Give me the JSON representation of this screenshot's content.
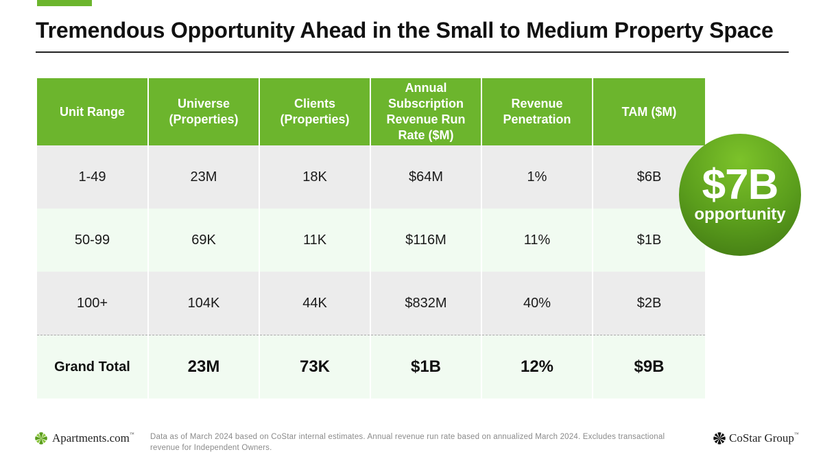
{
  "title": "Tremendous Opportunity Ahead in the Small to Medium Property Space",
  "table": {
    "headers": [
      "Unit Range",
      "Universe (Properties)",
      "Clients (Properties)",
      "Annual Subscription Revenue Run Rate ($M)",
      "Revenue Penetration",
      "TAM ($M)"
    ],
    "rows": [
      [
        "1-49",
        "23M",
        "18K",
        "$64M",
        "1%",
        "$6B"
      ],
      [
        "50-99",
        "69K",
        "11K",
        "$116M",
        "11%",
        "$1B"
      ],
      [
        "100+",
        "104K",
        "44K",
        "$832M",
        "40%",
        "$2B"
      ]
    ],
    "total": [
      "Grand Total",
      "23M",
      "73K",
      "$1B",
      "12%",
      "$9B"
    ]
  },
  "badge": {
    "amount": "$7B",
    "label": "opportunity"
  },
  "footnote": "Data as of March 2024 based on CoStar internal estimates. Annual revenue run rate based on annualized March 2024. Excludes transactional revenue for Independent Owners.",
  "logos": {
    "left": {
      "text": "Apartments.com",
      "tm": "™",
      "icon": "apartments-logo-icon"
    },
    "right": {
      "text": "CoStar Group",
      "tm": "™",
      "icon": "costar-logo-icon"
    }
  },
  "colors": {
    "accent": "#6cb52d",
    "row_gray": "#ececec",
    "row_mint": "#f1fbf1",
    "badge": "#5a9d1c"
  }
}
